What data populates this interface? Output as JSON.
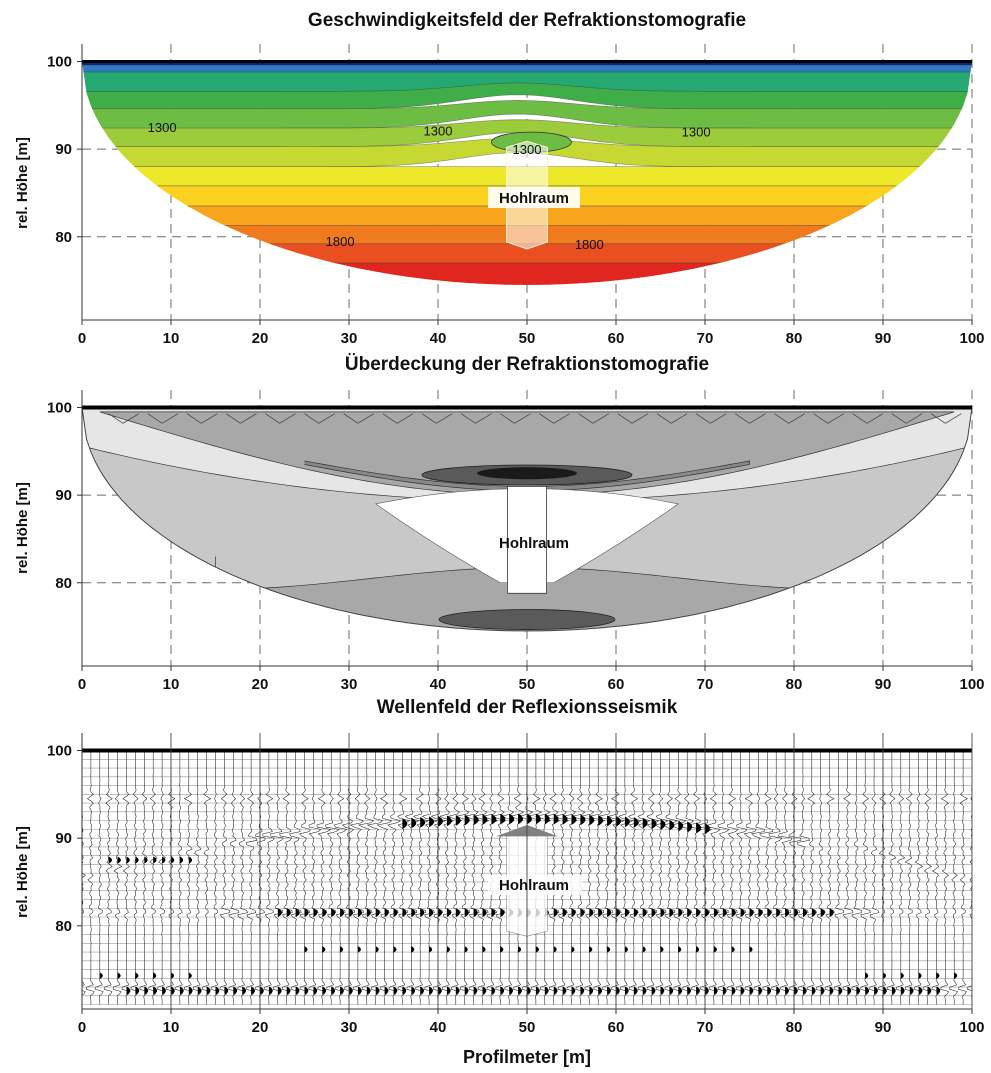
{
  "chart_data": [
    {
      "type": "heatmap",
      "title": "Geschwindigkeitsfeld der Refraktionstomografie",
      "xlabel": "",
      "ylabel": "rel. Höhe [m]",
      "xlim": [
        0,
        100
      ],
      "ylim": [
        70.5,
        102
      ],
      "xticks": [
        0,
        10,
        20,
        30,
        40,
        50,
        60,
        70,
        80,
        90,
        100
      ],
      "yticks": [
        80,
        90,
        100
      ],
      "grid": true,
      "annotation": "Hohlraum",
      "contour_labels": [
        {
          "label": "1300",
          "x": 9,
          "y": 92.5
        },
        {
          "label": "1300",
          "x": 40,
          "y": 92.1
        },
        {
          "label": "1300",
          "x": 69,
          "y": 92.0
        },
        {
          "label": "1300",
          "x": 50,
          "y": 90.0
        },
        {
          "label": "1800",
          "x": 29,
          "y": 79.5
        },
        {
          "label": "1800",
          "x": 57,
          "y": 79.2
        }
      ],
      "colors": [
        "#0a1f78",
        "#2e7bc4",
        "#26a872",
        "#3fae49",
        "#6dbd45",
        "#9ccb3b",
        "#c6d932",
        "#eee82a",
        "#fad21f",
        "#f7a51d",
        "#f07a1e",
        "#ea4f22",
        "#e0271f"
      ]
    },
    {
      "type": "heatmap",
      "title": "Überdeckung der Refraktionstomografie",
      "xlabel": "",
      "ylabel": "rel. Höhe [m]",
      "xlim": [
        0,
        100
      ],
      "ylim": [
        70.5,
        102
      ],
      "xticks": [
        0,
        10,
        20,
        30,
        40,
        50,
        60,
        70,
        80,
        90,
        100
      ],
      "yticks": [
        80,
        90,
        100
      ],
      "grid": true,
      "annotation": "Hohlraum",
      "colors": [
        "#e6e6e6",
        "#c8c8c8",
        "#a8a8a8",
        "#888888",
        "#5a5a5a",
        "#1a1a1a"
      ]
    },
    {
      "type": "line",
      "title": "Wellenfeld der Reflexionsseismik",
      "xlabel": "Profilmeter [m]",
      "ylabel": "rel. Höhe [m]",
      "xlim": [
        0,
        100
      ],
      "ylim": [
        70.5,
        102
      ],
      "xticks": [
        0,
        10,
        20,
        30,
        40,
        50,
        60,
        70,
        80,
        90,
        100
      ],
      "yticks": [
        80,
        90,
        100
      ],
      "grid": true,
      "annotation": "Hohlraum",
      "trace_spacing": 1.0
    }
  ]
}
